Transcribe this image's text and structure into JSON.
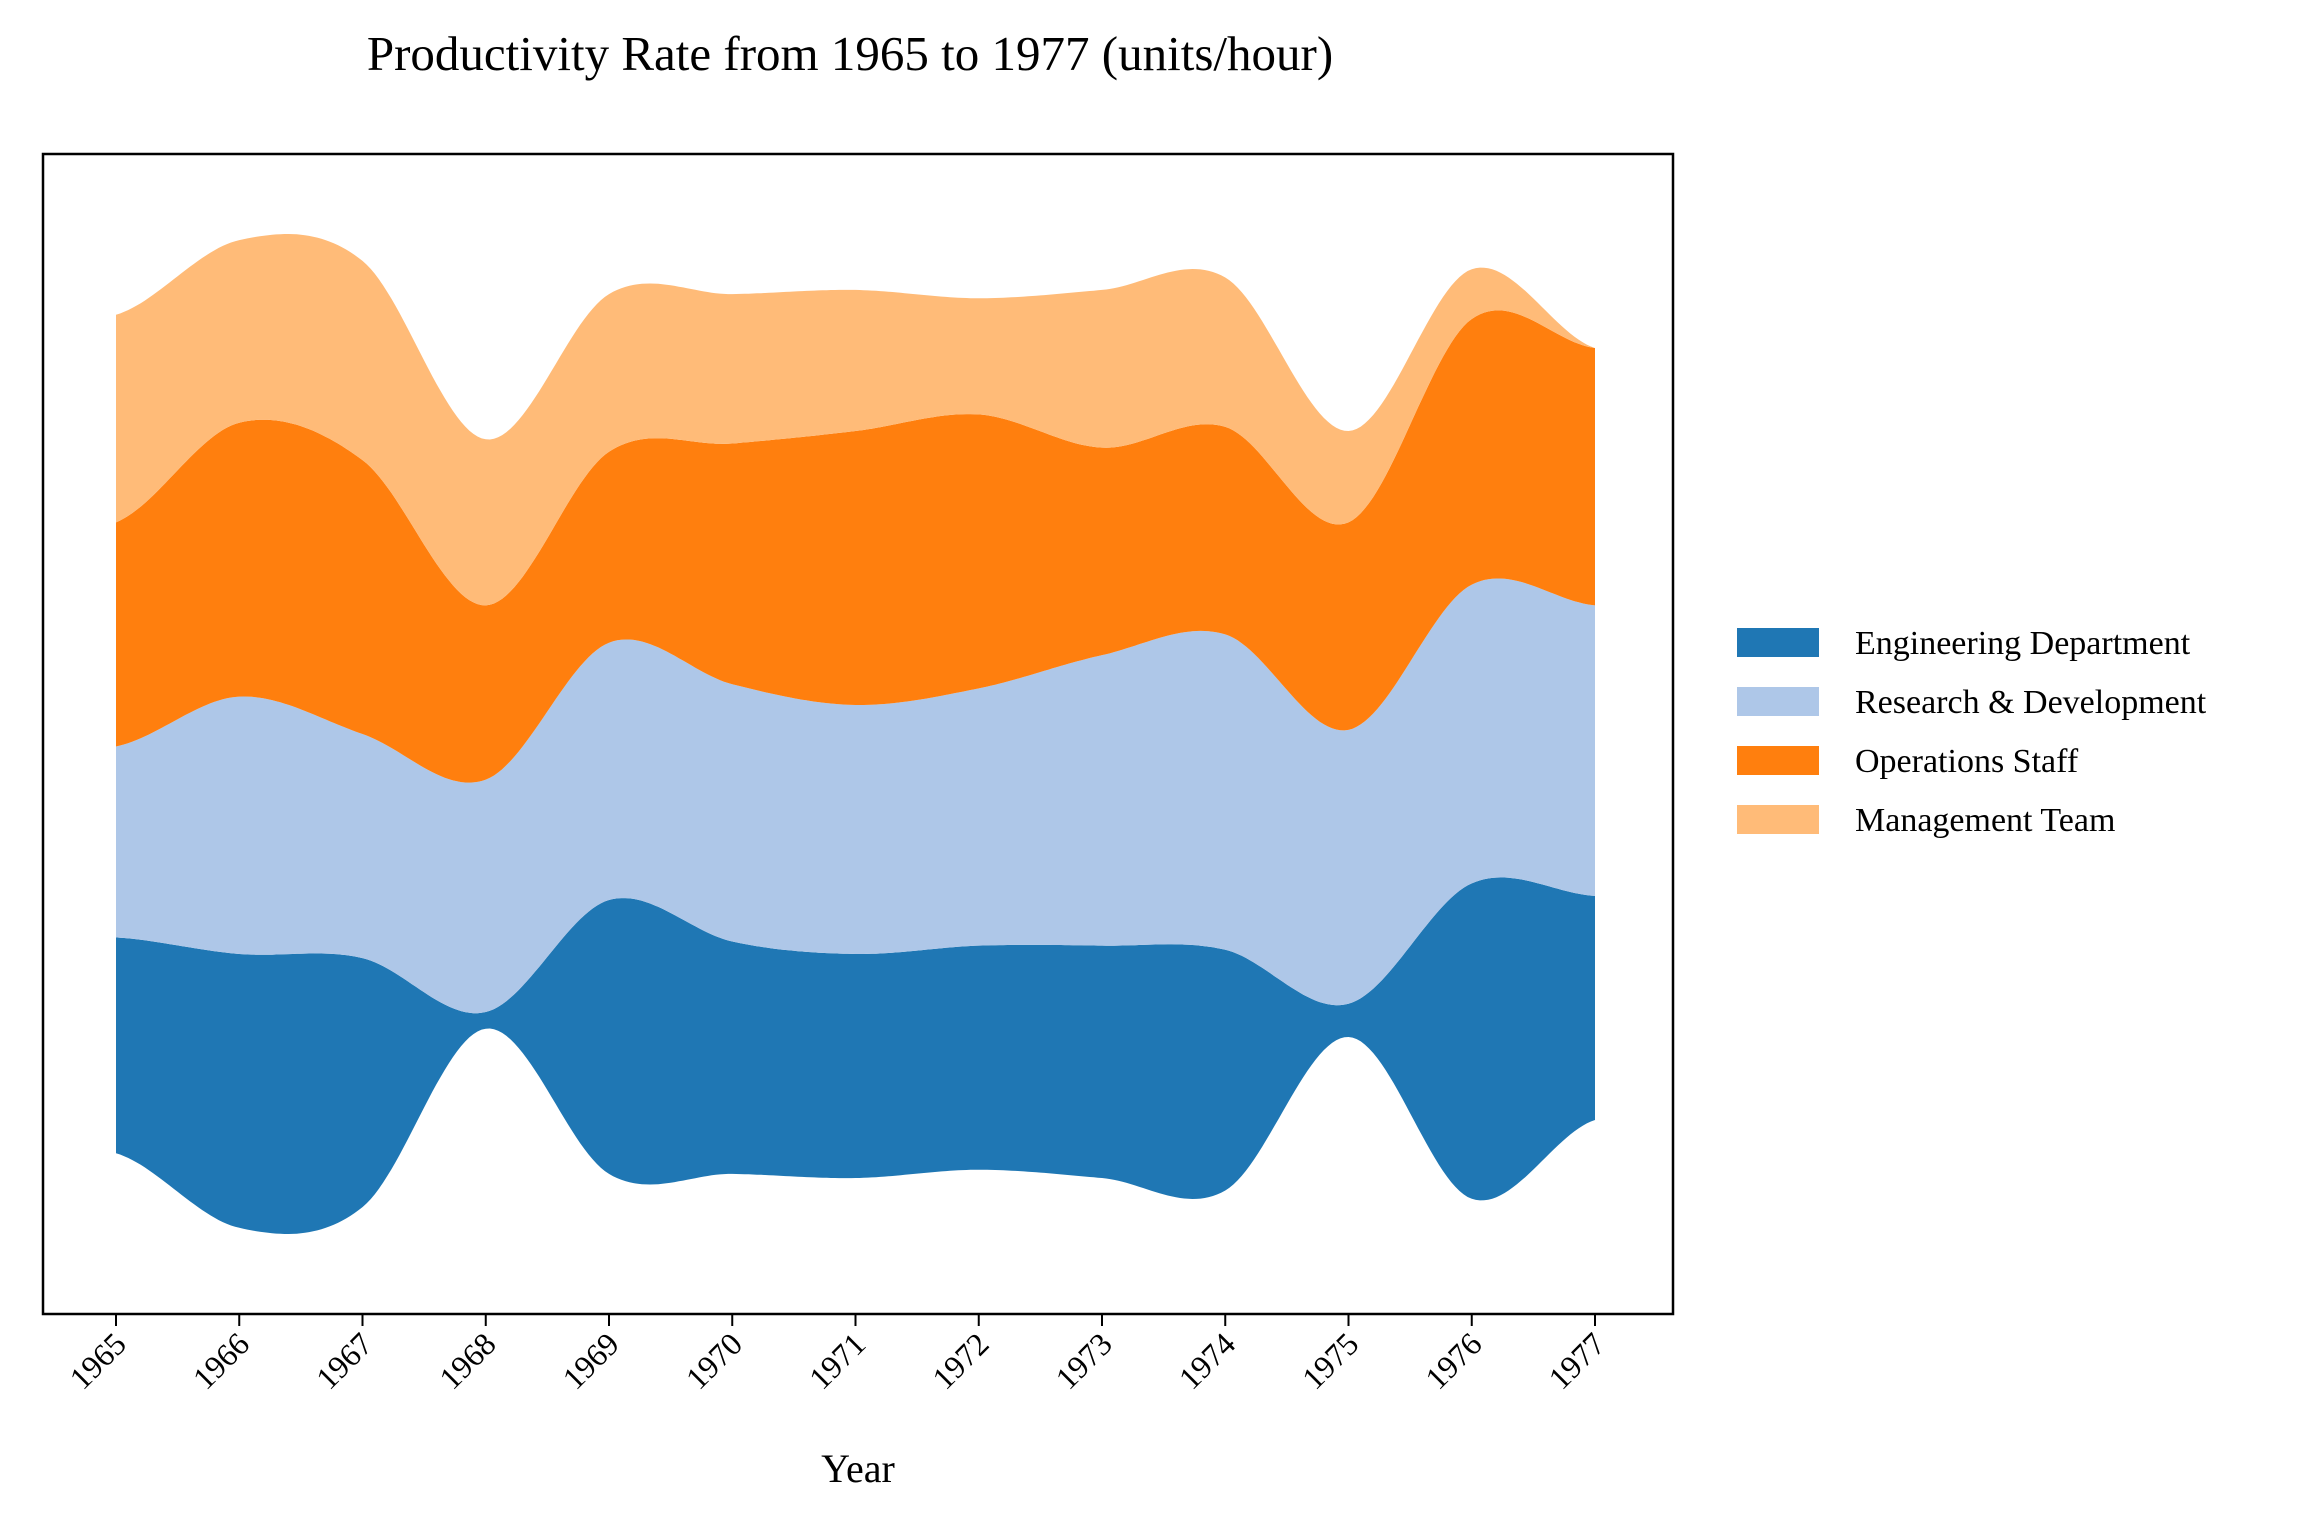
{
  "chart_data": {
    "type": "area",
    "subtype": "streamgraph",
    "title": "Productivity Rate from 1965 to 1977 (units/hour)",
    "xlabel": "Year",
    "ylabel": "",
    "x": [
      1965,
      1966,
      1967,
      1968,
      1969,
      1970,
      1971,
      1972,
      1973,
      1974,
      1975,
      1976,
      1977
    ],
    "xtick_labels": [
      "1965",
      "1966",
      "1967",
      "1968",
      "1969",
      "1970",
      "1971",
      "1972",
      "1973",
      "1974",
      "1975",
      "1976",
      "1977"
    ],
    "y_ticks_visible": false,
    "legend_position": "right",
    "grid": false,
    "series": [
      {
        "name": "Engineering Department",
        "color": "#1f77b4",
        "values": [
          26,
          33,
          30,
          2,
          33,
          28,
          27,
          27,
          28,
          29,
          4,
          38,
          27
        ]
      },
      {
        "name": "Research & Development",
        "color": "#aec7e8",
        "values": [
          23,
          31,
          27,
          28,
          31,
          31,
          30,
          31,
          35,
          38,
          33,
          36,
          35
        ]
      },
      {
        "name": "Operations Staff",
        "color": "#ff7f0e",
        "values": [
          27,
          33,
          33,
          21,
          23,
          29,
          33,
          33,
          25,
          25,
          25,
          32,
          31
        ]
      },
      {
        "name": "Management Team",
        "color": "#ffbb78",
        "values": [
          25,
          22,
          24,
          20,
          19,
          18,
          17,
          14,
          19,
          18,
          11,
          6,
          0
        ]
      }
    ]
  }
}
